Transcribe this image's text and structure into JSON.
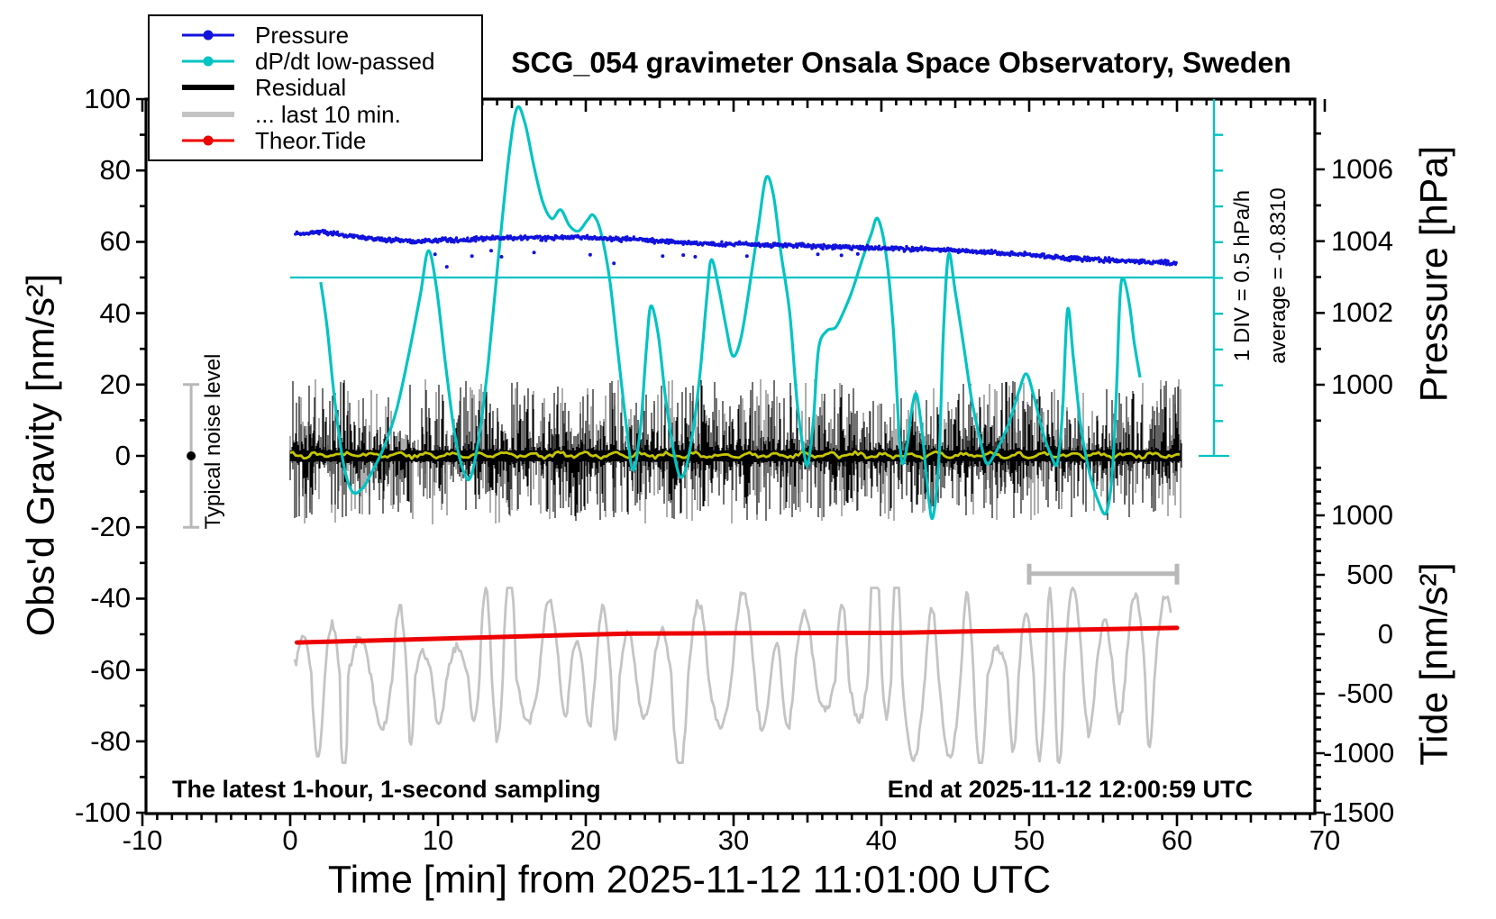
{
  "title": "SCG_054 gravimeter Onsala Space Observatory, Sweden",
  "legend": {
    "items": [
      {
        "label": "Pressure",
        "color": "#1212dd",
        "style": "line-dot",
        "thick": false
      },
      {
        "label": "dP/dt low-passed",
        "color": "#00c3c3",
        "style": "line-dot",
        "thick": false
      },
      {
        "label": "Residual",
        "color": "#000000",
        "style": "line",
        "thick": true
      },
      {
        "label": "... last 10 min.",
        "color": "#c4c4c4",
        "style": "line",
        "thick": true
      },
      {
        "label": "Theor.Tide",
        "color": "#ee0000",
        "style": "line-dot",
        "thick": false
      }
    ]
  },
  "axes": {
    "x": {
      "label": "Time [min] from 2025-11-12 11:01:00 UTC",
      "tick_values": [
        -10,
        0,
        10,
        20,
        30,
        40,
        50,
        60,
        70
      ],
      "range": [
        -10,
        70
      ],
      "minor_step": 1
    },
    "gravity": {
      "label": "Obs'd Gravity [nm/s²]",
      "tick_values": [
        100,
        80,
        60,
        40,
        20,
        0,
        -20,
        -40,
        -60,
        -80,
        -100
      ],
      "range": [
        -100,
        100
      ],
      "minor_step": 10
    },
    "pressure": {
      "label": "Pressure [hPa]",
      "tick_values": [
        1006,
        1004,
        1002,
        1000
      ],
      "minor_step": 1
    },
    "tide": {
      "label": "Tide [nm/s²]",
      "tick_values": [
        1000,
        500,
        0,
        -500,
        -1000,
        -1500
      ],
      "minor_step": 100
    }
  },
  "annotations": {
    "div_scale": "1 DIV = 0.5 hPa/h",
    "average": "average = -0.8310",
    "noise_level": "Typical noise level",
    "sampling_note": "The latest 1-hour, 1-second sampling",
    "end_time": "End at 2025-11-12 12:00:59 UTC"
  },
  "colors": {
    "pressure_blue": "#1212dd",
    "dpdt_cyan": "#00c3c3",
    "residual_black": "#000000",
    "residual_gray": "#828282",
    "last10_gray": "#c4c4c4",
    "tide_red": "#ee0000",
    "smoothed_yellow": "#c6c600",
    "marker_gray": "#b8b8b8"
  },
  "chart_data": {
    "type": "line",
    "title": "SCG_054 gravimeter Onsala Space Observatory, Sweden",
    "xlabel": "Time [min] from 2025-11-12 11:01:00 UTC",
    "xlim": [
      -10,
      70
    ],
    "left_ylabel": "Obs'd Gravity [nm/s²]",
    "left_ylim": [
      -100,
      100
    ],
    "right_pressure_ticks_hpa": [
      1006,
      1004,
      1002,
      1000
    ],
    "right_tide_ticks": [
      1000,
      500,
      0,
      -500,
      -1000,
      -1500
    ],
    "grid": false,
    "legend_position": "top-left",
    "series": [
      {
        "name": "Pressure",
        "axis": "gravity-units",
        "render": "dot-scatter-line",
        "points": [
          [
            0.5,
            62.2
          ],
          [
            1.2,
            62.4
          ],
          [
            2.2,
            62.9
          ],
          [
            3.2,
            62.1
          ],
          [
            4.5,
            61.4
          ],
          [
            6,
            60.8
          ],
          [
            7.5,
            60.3
          ],
          [
            8.8,
            60.1
          ],
          [
            10,
            60.4
          ],
          [
            11.5,
            60.5
          ],
          [
            13,
            60.9
          ],
          [
            14.5,
            61.1
          ],
          [
            16,
            61.2
          ],
          [
            17.5,
            61.1
          ],
          [
            19,
            61.3
          ],
          [
            20.5,
            61.1
          ],
          [
            21.5,
            60.9
          ],
          [
            22.5,
            60.7
          ],
          [
            23.5,
            60.8
          ],
          [
            24.5,
            60.3
          ],
          [
            25.5,
            60.1
          ],
          [
            26.5,
            59.9
          ],
          [
            27.5,
            59.6
          ],
          [
            28.5,
            59.5
          ],
          [
            29.5,
            59.3
          ],
          [
            30.5,
            59.4
          ],
          [
            31.5,
            59.2
          ],
          [
            32.5,
            59.1
          ],
          [
            34,
            58.9
          ],
          [
            35.5,
            58.8
          ],
          [
            37,
            58.6
          ],
          [
            38.5,
            58.4
          ],
          [
            40,
            58.3
          ],
          [
            41.5,
            58.1
          ],
          [
            43,
            57.9
          ],
          [
            44.5,
            57.7
          ],
          [
            45.5,
            57.5
          ],
          [
            46.5,
            57.2
          ],
          [
            47.5,
            57.0
          ],
          [
            48.5,
            56.8
          ],
          [
            49.5,
            56.5
          ],
          [
            50.5,
            56.2
          ],
          [
            51.5,
            55.8
          ],
          [
            52.5,
            55.5
          ],
          [
            53.5,
            55.2
          ],
          [
            54.5,
            55.0
          ],
          [
            55.5,
            54.8
          ],
          [
            56.5,
            54.6
          ],
          [
            57.5,
            54.4
          ],
          [
            58.5,
            54.3
          ],
          [
            59.5,
            54.1
          ],
          [
            60,
            54.0
          ]
        ],
        "outlier_points": [
          [
            9.8,
            56.5
          ],
          [
            10.6,
            53
          ],
          [
            12.3,
            56
          ],
          [
            13.6,
            57.5
          ],
          [
            14.3,
            55.8
          ],
          [
            16.5,
            57
          ],
          [
            20.3,
            56.4
          ],
          [
            21.9,
            54
          ],
          [
            25.2,
            56
          ],
          [
            26.6,
            56.3
          ],
          [
            27.4,
            55.8
          ],
          [
            30.9,
            56
          ],
          [
            35.7,
            56.5
          ],
          [
            37.3,
            56.2
          ],
          [
            38.4,
            56.6
          ]
        ]
      },
      {
        "name": "dP/dt low-passed",
        "axis": "gravity-units",
        "render": "smooth-line",
        "zero_reference_gravity": 50,
        "div_value_hpa_per_h": 0.5,
        "average_hpa_per_h": -0.831,
        "points": [
          [
            2.07,
            48.7
          ],
          [
            2.5,
            36
          ],
          [
            3.0,
            16
          ],
          [
            3.6,
            -2
          ],
          [
            4.2,
            -10
          ],
          [
            4.9,
            -9
          ],
          [
            5.6,
            -4
          ],
          [
            6.4,
            3
          ],
          [
            7.2,
            13
          ],
          [
            8.0,
            28
          ],
          [
            8.8,
            45
          ],
          [
            9.35,
            57.5
          ],
          [
            9.9,
            47
          ],
          [
            10.5,
            26
          ],
          [
            11.1,
            7
          ],
          [
            11.7,
            -4
          ],
          [
            12.2,
            -6
          ],
          [
            12.8,
            6
          ],
          [
            13.4,
            26
          ],
          [
            14.1,
            56
          ],
          [
            14.8,
            84
          ],
          [
            15.35,
            97.5
          ],
          [
            15.9,
            93
          ],
          [
            16.5,
            81
          ],
          [
            17.1,
            71
          ],
          [
            17.7,
            66.5
          ],
          [
            18.3,
            69
          ],
          [
            18.9,
            64.5
          ],
          [
            19.5,
            63
          ],
          [
            20.1,
            66
          ],
          [
            20.5,
            67.5
          ],
          [
            21.0,
            63
          ],
          [
            21.6,
            50
          ],
          [
            22.1,
            32
          ],
          [
            22.7,
            10
          ],
          [
            23.2,
            -4
          ],
          [
            23.7,
            8
          ],
          [
            24.1,
            30
          ],
          [
            24.4,
            42
          ],
          [
            24.9,
            34
          ],
          [
            25.4,
            16
          ],
          [
            26.0,
            0
          ],
          [
            26.5,
            -6
          ],
          [
            27.1,
            3
          ],
          [
            27.7,
            22
          ],
          [
            28.2,
            45
          ],
          [
            28.5,
            55
          ],
          [
            29.0,
            47
          ],
          [
            29.5,
            36
          ],
          [
            29.95,
            28
          ],
          [
            30.5,
            33
          ],
          [
            31.1,
            48
          ],
          [
            31.7,
            65
          ],
          [
            32.2,
            78
          ],
          [
            32.7,
            73
          ],
          [
            33.2,
            57
          ],
          [
            33.8,
            40
          ],
          [
            34.3,
            15
          ],
          [
            34.8,
            0
          ],
          [
            35.05,
            -2
          ],
          [
            35.4,
            10
          ],
          [
            35.75,
            30
          ],
          [
            36.3,
            35
          ],
          [
            36.9,
            36
          ],
          [
            37.4,
            40
          ],
          [
            38.0,
            46
          ],
          [
            38.7,
            55
          ],
          [
            39.3,
            62
          ],
          [
            39.75,
            66.5
          ],
          [
            40.3,
            57
          ],
          [
            40.8,
            36
          ],
          [
            41.15,
            10
          ],
          [
            41.4,
            -2
          ],
          [
            41.75,
            3
          ],
          [
            42.1,
            14
          ],
          [
            42.4,
            17
          ],
          [
            42.8,
            5
          ],
          [
            43.2,
            -12
          ],
          [
            43.5,
            -17
          ],
          [
            43.9,
            0
          ],
          [
            44.2,
            35
          ],
          [
            44.55,
            56.5
          ],
          [
            45.0,
            46
          ],
          [
            45.6,
            30
          ],
          [
            46.1,
            16
          ],
          [
            46.6,
            6
          ],
          [
            47.1,
            -2
          ],
          [
            47.6,
            0
          ],
          [
            48.1,
            4
          ],
          [
            48.7,
            10
          ],
          [
            49.3,
            18
          ],
          [
            49.8,
            23
          ],
          [
            50.3,
            17
          ],
          [
            50.9,
            7
          ],
          [
            51.5,
            0
          ],
          [
            51.9,
            -2
          ],
          [
            52.25,
            12
          ],
          [
            52.6,
            41
          ],
          [
            53.0,
            27
          ],
          [
            53.5,
            8
          ],
          [
            54.1,
            -5
          ],
          [
            54.7,
            -13
          ],
          [
            55.2,
            -16
          ],
          [
            55.6,
            -6
          ],
          [
            55.9,
            18
          ],
          [
            56.15,
            45
          ],
          [
            56.4,
            49.5
          ],
          [
            56.8,
            42
          ],
          [
            57.1,
            32
          ],
          [
            57.5,
            22
          ]
        ]
      },
      {
        "name": "Residual",
        "axis": "gravity-units",
        "render": "noise-band",
        "x_span_min": [
          0,
          60.3
        ],
        "center": 0,
        "typical_amplitude": 12,
        "max_amplitude": 24,
        "seed": 1234
      },
      {
        "name": "Residual smoothed",
        "axis": "gravity-units",
        "render": "wiggly-line",
        "x_span_min": [
          0,
          60.3
        ],
        "center": 0.2,
        "amplitude": 1.2,
        "seed": 77
      },
      {
        "name": "... last 10 min.",
        "axis": "gravity-units",
        "render": "oscillating-line",
        "x_span_min": [
          0.3,
          59.6
        ],
        "center": -62,
        "amplitude_range": [
          6,
          27
        ],
        "period_range_min": [
          0.55,
          1.6
        ],
        "clamp": [
          -86,
          -37
        ],
        "seed": 4242
      },
      {
        "name": "Theor.Tide",
        "axis": "gravity-units",
        "render": "thick-line",
        "points": [
          [
            0.45,
            -52.3
          ],
          [
            6,
            -51.7
          ],
          [
            12,
            -51.0
          ],
          [
            18,
            -50.3
          ],
          [
            23,
            -49.8
          ],
          [
            30,
            -49.7
          ],
          [
            36,
            -49.65
          ],
          [
            41,
            -49.6
          ],
          [
            46,
            -49.2
          ],
          [
            52,
            -48.8
          ],
          [
            56,
            -48.5
          ],
          [
            60,
            -48.2
          ]
        ]
      }
    ],
    "markers": {
      "noise_errorbar": {
        "x_min": -6.7,
        "center_gravity": 0,
        "half_width_gravity": 20
      },
      "last10_range_bar": {
        "from_min": 50,
        "to_min": 60,
        "gravity_level": -33
      },
      "dpdt_scale_bar": {
        "x_min": 62.5,
        "top_gravity": 100,
        "bottom_gravity": 0,
        "divisions": 10
      }
    }
  }
}
